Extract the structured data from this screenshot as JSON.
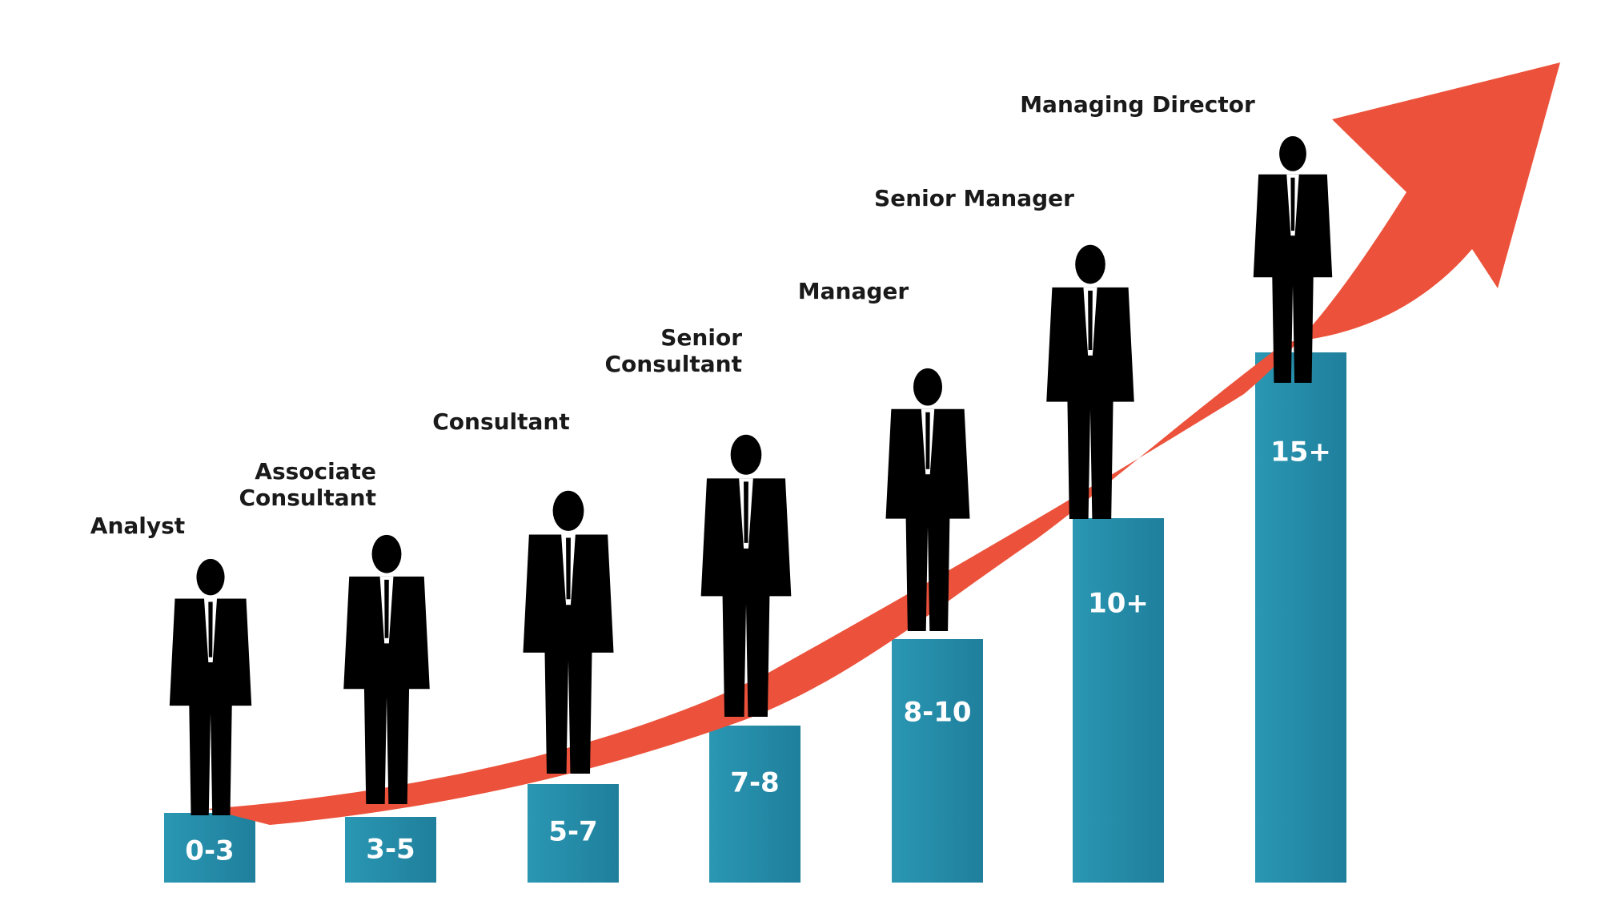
{
  "steps": [
    {
      "role": [
        "Analyst"
      ],
      "years": "0-3"
    },
    {
      "role": [
        "Associate",
        "Consultant"
      ],
      "years": "3-5"
    },
    {
      "role": [
        "Consultant"
      ],
      "years": "5-7"
    },
    {
      "role": [
        "Senior",
        "Consultant"
      ],
      "years": "7-8"
    },
    {
      "role": [
        "Manager"
      ],
      "years": "8-10"
    },
    {
      "role": [
        "Senior Manager"
      ],
      "years": "10+"
    },
    {
      "role": [
        "Managing Director"
      ],
      "years": "15+"
    }
  ]
}
